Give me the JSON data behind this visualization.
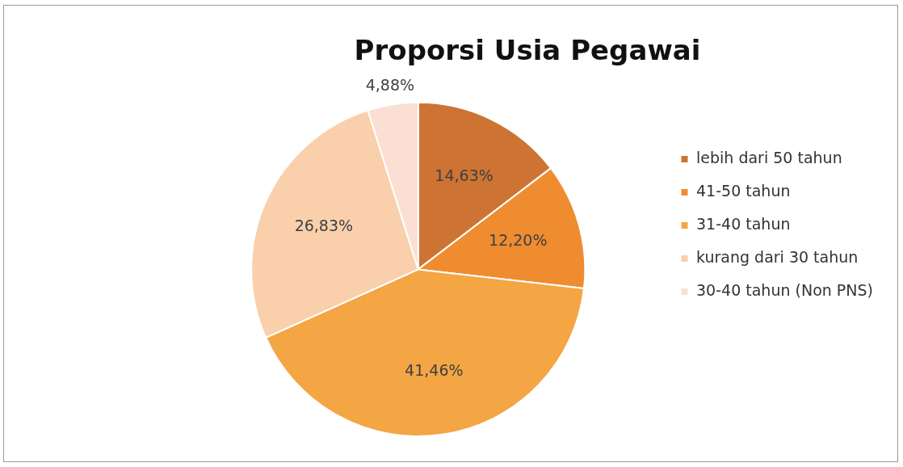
{
  "chart_data": {
    "type": "pie",
    "title": "Proporsi Usia Pegawai",
    "categories": [
      "lebih dari 50 tahun",
      "41-50 tahun",
      "31-40 tahun",
      "kurang dari 30 tahun",
      "30-40 tahun (Non PNS)"
    ],
    "values": [
      14.63,
      12.2,
      41.46,
      26.83,
      4.88
    ],
    "value_labels": [
      "14,63%",
      "12,20%",
      "41,46%",
      "26,83%",
      "4,88%"
    ],
    "colors": [
      "#cd7434",
      "#ef8c30",
      "#f4a544",
      "#f9d0ab",
      "#fadfd2"
    ],
    "legend": "right"
  }
}
